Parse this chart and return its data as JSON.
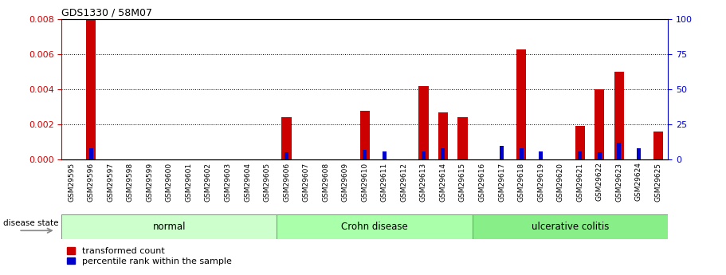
{
  "title": "GDS1330 / 58M07",
  "samples": [
    "GSM29595",
    "GSM29596",
    "GSM29597",
    "GSM29598",
    "GSM29599",
    "GSM29600",
    "GSM29601",
    "GSM29602",
    "GSM29603",
    "GSM29604",
    "GSM29605",
    "GSM29606",
    "GSM29607",
    "GSM29608",
    "GSM29609",
    "GSM29610",
    "GSM29611",
    "GSM29612",
    "GSM29613",
    "GSM29614",
    "GSM29615",
    "GSM29616",
    "GSM29617",
    "GSM29618",
    "GSM29619",
    "GSM29620",
    "GSM29621",
    "GSM29622",
    "GSM29623",
    "GSM29624",
    "GSM29625"
  ],
  "transformed_count": [
    0.0,
    0.008,
    0.0,
    0.0,
    0.0,
    0.0,
    0.0,
    0.0,
    0.0,
    0.0,
    0.0,
    0.0024,
    0.0,
    0.0,
    0.0,
    0.0028,
    0.0,
    0.0,
    0.0042,
    0.0027,
    0.0024,
    0.0,
    0.0,
    0.0063,
    0.0,
    0.0,
    0.0019,
    0.004,
    0.005,
    0.0,
    0.0016
  ],
  "percentile_rank": [
    0.0,
    8.0,
    0.0,
    0.0,
    0.0,
    0.0,
    0.0,
    0.0,
    0.0,
    0.0,
    0.0,
    5.0,
    0.0,
    0.0,
    0.0,
    7.0,
    6.0,
    0.0,
    6.0,
    8.0,
    0.0,
    0.0,
    10.0,
    8.0,
    6.0,
    0.0,
    6.0,
    5.0,
    12.0,
    8.0,
    0.0
  ],
  "groups": [
    {
      "label": "normal",
      "start": 0,
      "end": 10,
      "color": "#ccffcc"
    },
    {
      "label": "Crohn disease",
      "start": 11,
      "end": 20,
      "color": "#aaffaa"
    },
    {
      "label": "ulcerative colitis",
      "start": 21,
      "end": 30,
      "color": "#88ee88"
    }
  ],
  "ylim_left": [
    0,
    0.008
  ],
  "ylim_right": [
    0,
    100
  ],
  "yticks_left": [
    0,
    0.002,
    0.004,
    0.006,
    0.008
  ],
  "yticks_right": [
    0,
    25,
    50,
    75,
    100
  ],
  "bar_color_red": "#cc0000",
  "bar_color_blue": "#0000cc",
  "red_bar_width": 0.5,
  "blue_bar_width": 0.2,
  "background_color": "#ffffff",
  "legend_red": "transformed count",
  "legend_blue": "percentile rank within the sample",
  "disease_state_label": "disease state"
}
